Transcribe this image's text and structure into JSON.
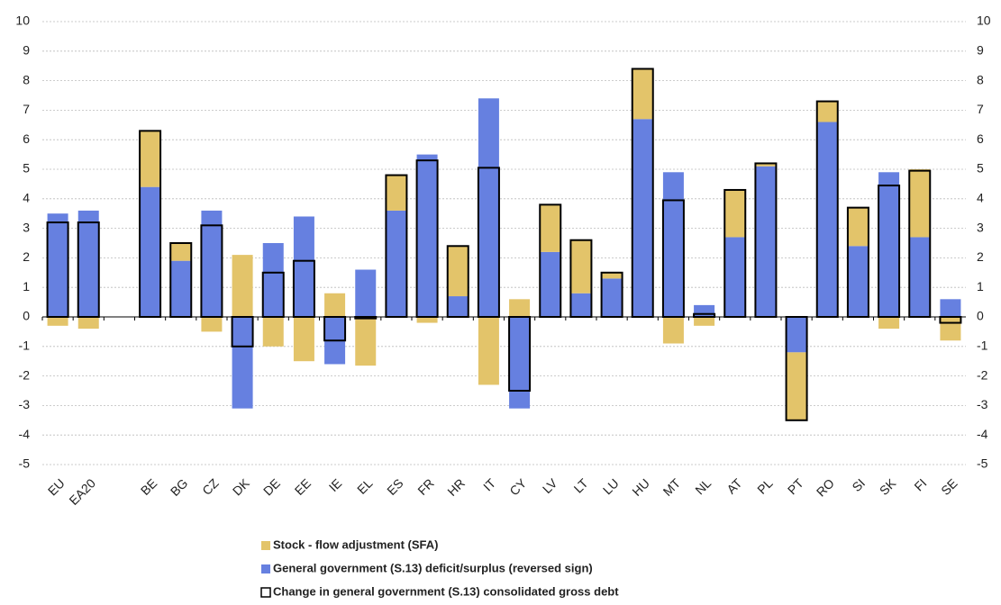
{
  "chart_data": {
    "type": "stacked-bar",
    "categories": [
      "EU",
      "EA20",
      null,
      "BE",
      "BG",
      "CZ",
      "DK",
      "DE",
      "EE",
      "IE",
      "EL",
      "ES",
      "FR",
      "HR",
      "IT",
      "CY",
      "LV",
      "LT",
      "LU",
      "HU",
      "MT",
      "NL",
      "AT",
      "PL",
      "PT",
      "RO",
      "SI",
      "SK",
      "FI",
      "SE"
    ],
    "series": [
      {
        "name": "General government (S.13) deficit/surplus (reversed sign)",
        "color": "#6680e0",
        "values": [
          3.5,
          3.6,
          null,
          4.4,
          1.9,
          3.6,
          -3.1,
          2.5,
          3.4,
          -1.6,
          1.6,
          3.6,
          5.5,
          0.7,
          7.4,
          -3.1,
          2.2,
          0.8,
          1.3,
          6.7,
          4.9,
          0.4,
          2.7,
          5.1,
          -1.2,
          6.6,
          2.4,
          4.9,
          2.7,
          0.6
        ]
      },
      {
        "name": "Stock - flow adjustment (SFA)",
        "color": "#e3c46a",
        "values": [
          -0.3,
          -0.4,
          null,
          1.9,
          0.6,
          -0.5,
          2.1,
          -1.0,
          -1.5,
          0.8,
          -1.65,
          1.2,
          -0.2,
          1.7,
          -2.3,
          0.6,
          1.6,
          1.8,
          0.2,
          1.7,
          -0.9,
          -0.3,
          1.6,
          0.1,
          -2.3,
          0.7,
          1.3,
          -0.4,
          2.3,
          -0.8
        ]
      },
      {
        "name": "Change in general government (S.13) consolidated gross debt",
        "color": "#000000",
        "overlay": true,
        "values": [
          3.2,
          3.2,
          null,
          6.3,
          2.5,
          3.1,
          -1.0,
          1.5,
          1.9,
          -0.8,
          -0.05,
          4.8,
          5.3,
          2.4,
          5.05,
          -2.5,
          3.8,
          2.6,
          1.5,
          8.4,
          3.95,
          0.1,
          4.3,
          5.2,
          -3.5,
          7.3,
          3.7,
          4.45,
          4.95,
          -0.2
        ]
      }
    ],
    "legend_order": [
      1,
      0,
      2
    ],
    "ylim": [
      -5,
      10
    ],
    "yticks": [
      -5,
      -4,
      -3,
      -2,
      -1,
      0,
      1,
      2,
      3,
      4,
      5,
      6,
      7,
      8,
      9,
      10
    ],
    "y2lim": [
      -5,
      10
    ],
    "y2ticks": [
      -5,
      -4,
      -3,
      -2,
      -1,
      0,
      1,
      2,
      3,
      4,
      5,
      6,
      7,
      8,
      9,
      10
    ],
    "grid": true
  }
}
